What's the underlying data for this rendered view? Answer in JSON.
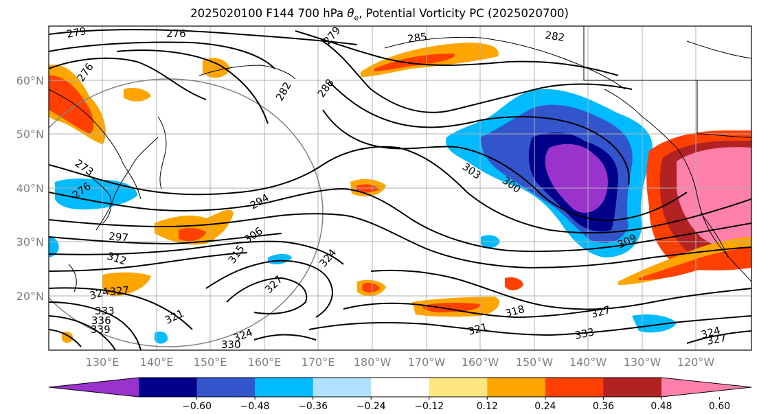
{
  "title": "2025020100 F144 700 hPa",
  "title_theta": "θ",
  "title_sub": "e",
  "title_rest": ", Potential Vorticity PC (2025020700)",
  "lat_labels": [
    "60°N",
    "50°N",
    "40°N",
    "30°N",
    "20°N"
  ],
  "lon_labels": [
    "130°E",
    "140°E",
    "150°E",
    "160°E",
    "170°E",
    "180°W",
    "170°W",
    "160°W",
    "150°W",
    "140°W",
    "130°W",
    "120°W"
  ],
  "contour_labels": [
    "279",
    "276",
    "279",
    "285",
    "282",
    "276",
    "282",
    "288",
    "273",
    "276",
    "294",
    "303",
    "300",
    "297",
    "306",
    "312",
    "315",
    "324",
    "327",
    "309",
    "324",
    "327",
    "333",
    "336",
    "339",
    "321",
    "324",
    "330",
    "321",
    "318",
    "327",
    "333",
    "324",
    "327"
  ],
  "colorbar": {
    "colors": [
      "#9933cc",
      "#00008b",
      "#3355cc",
      "#00bbff",
      "#b0e2ff",
      "#ffffff",
      "#ffe680",
      "#ffa500",
      "#ff4000",
      "#b22222",
      "#ff80aa"
    ],
    "tick_labels": [
      "−0.60",
      "−0.48",
      "−0.36",
      "−0.24",
      "−0.12",
      "0.12",
      "0.24",
      "0.36",
      "0.48",
      "0.60"
    ]
  }
}
